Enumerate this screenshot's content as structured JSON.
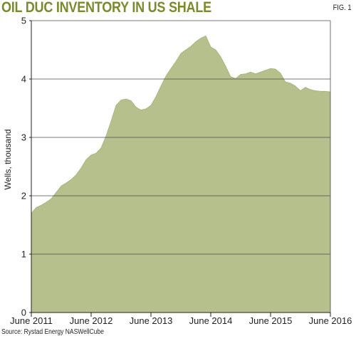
{
  "header": {
    "title": "OIL DUC INVENTORY IN US SHALE",
    "fig_label": "FIG. 1"
  },
  "footer": {
    "source": "Source: Rystad Energy NASWellCube"
  },
  "colors": {
    "title": "#7a8a2e",
    "area_fill": "#b5c08c",
    "area_edge": "#9aa872",
    "grid": "#4d4d4d",
    "axis": "#231f20"
  },
  "chart_data": {
    "type": "area",
    "ylabel": "Wells, thousand",
    "xlabel": "",
    "ylim": [
      0,
      5
    ],
    "yticks": [
      0,
      1,
      2,
      3,
      4,
      5
    ],
    "xlim": [
      "2011-06",
      "2016-06"
    ],
    "xticks": [
      {
        "x": "2011-06",
        "label": "June 2011"
      },
      {
        "x": "2012-06",
        "label": "June 2012"
      },
      {
        "x": "2013-06",
        "label": "June 2013"
      },
      {
        "x": "2014-06",
        "label": "June 2014"
      },
      {
        "x": "2015-06",
        "label": "June 2015"
      },
      {
        "x": "2016-06",
        "label": "June 2016"
      }
    ],
    "grid": true,
    "series": [
      {
        "x": [
          "2011-06",
          "2011-07",
          "2011-08",
          "2011-09",
          "2011-10",
          "2011-11",
          "2011-12",
          "2012-01",
          "2012-02",
          "2012-03",
          "2012-04",
          "2012-05",
          "2012-06",
          "2012-07",
          "2012-08",
          "2012-09",
          "2012-10",
          "2012-11",
          "2012-12",
          "2013-01",
          "2013-02",
          "2013-03",
          "2013-04",
          "2013-05",
          "2013-06",
          "2013-07",
          "2013-08",
          "2013-09",
          "2013-10",
          "2013-11",
          "2013-12",
          "2014-01",
          "2014-02",
          "2014-03",
          "2014-04",
          "2014-05",
          "2014-06",
          "2014-07",
          "2014-08",
          "2014-09",
          "2014-10",
          "2014-11",
          "2014-12",
          "2015-01",
          "2015-02",
          "2015-03",
          "2015-04",
          "2015-05",
          "2015-06",
          "2015-07",
          "2015-08",
          "2015-09",
          "2015-10",
          "2015-11",
          "2015-12",
          "2016-01",
          "2016-02",
          "2016-03",
          "2016-04",
          "2016-05",
          "2016-06"
        ],
        "values": [
          1.7,
          1.8,
          1.84,
          1.89,
          1.95,
          2.06,
          2.17,
          2.22,
          2.28,
          2.36,
          2.48,
          2.62,
          2.7,
          2.73,
          2.82,
          3.03,
          3.28,
          3.55,
          3.64,
          3.66,
          3.63,
          3.52,
          3.47,
          3.49,
          3.55,
          3.7,
          3.88,
          4.05,
          4.18,
          4.3,
          4.44,
          4.5,
          4.56,
          4.64,
          4.7,
          4.74,
          4.55,
          4.5,
          4.38,
          4.22,
          4.04,
          4.01,
          4.08,
          4.09,
          4.12,
          4.09,
          4.12,
          4.15,
          4.18,
          4.17,
          4.1,
          3.95,
          3.93,
          3.88,
          3.8,
          3.86,
          3.82,
          3.8,
          3.79,
          3.79,
          3.78
        ]
      }
    ]
  }
}
